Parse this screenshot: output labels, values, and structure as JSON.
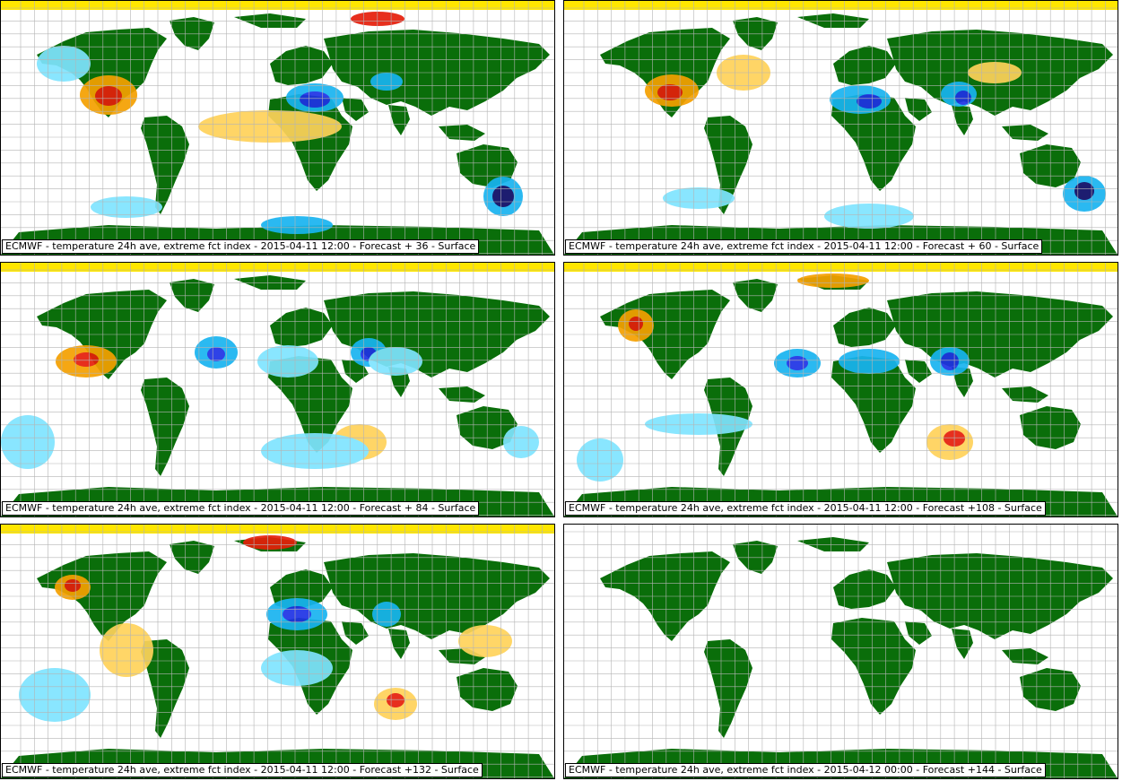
{
  "colors": {
    "land": "#0a6e0a",
    "grid": "#b4b4b4",
    "sea": "#ffffff",
    "cold_light": "#7fe4ff",
    "cold_mid": "#18b4f0",
    "cold_strong": "#1e32e6",
    "cold_extreme": "#0a0a64",
    "warm_light": "#ffd25a",
    "warm_mid": "#f5a000",
    "warm_strong": "#e61e0a",
    "warm_extreme": "#64000a",
    "polar": "#ffe600"
  },
  "panels": [
    {
      "caption": "ECMWF - temperature 24h ave, extreme fct index - 2015-04-11 12:00 - Forecast + 36 - Surface",
      "has_anomalies": true
    },
    {
      "caption": "ECMWF - temperature 24h ave, extreme fct index - 2015-04-11 12:00 - Forecast + 60 - Surface",
      "has_anomalies": true
    },
    {
      "caption": "ECMWF - temperature 24h ave, extreme fct index - 2015-04-11 12:00 - Forecast + 84 - Surface",
      "has_anomalies": true
    },
    {
      "caption": "ECMWF - temperature 24h ave, extreme fct index - 2015-04-11 12:00 - Forecast +108 - Surface",
      "has_anomalies": true
    },
    {
      "caption": "ECMWF - temperature 24h ave, extreme fct index - 2015-04-11 12:00 - Forecast +132 - Surface",
      "has_anomalies": true
    },
    {
      "caption": "ECMWF - temperature 24h ave, extreme fct index - 2015-04-12 00:00 - Forecast +144 - Surface",
      "has_anomalies": false
    }
  ]
}
